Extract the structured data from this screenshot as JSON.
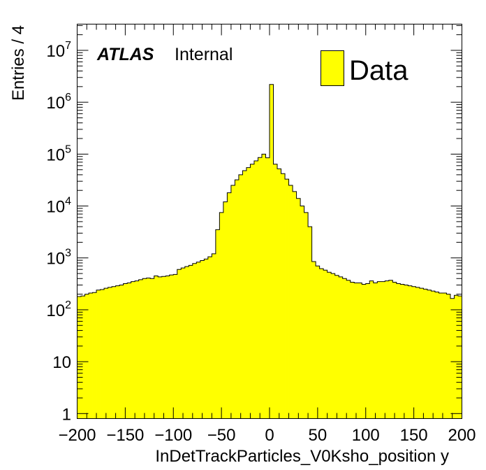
{
  "chart_data": {
    "type": "bar",
    "style": "histogram",
    "bin_width": 4,
    "xlim": [
      -200,
      200
    ],
    "ylim": [
      0.8,
      32000000.0
    ],
    "yscale": "log",
    "grid": false,
    "legend_position": "top-right",
    "xlabel": "InDetTrackParticles_V0Ksho_position y",
    "ylabel": "Entries / 4",
    "x_ticks": [
      "−200",
      "−150",
      "−100",
      "−50",
      "0",
      "50",
      "100",
      "150",
      "200"
    ],
    "x_tick_values": [
      -200,
      -150,
      -100,
      -50,
      0,
      50,
      100,
      150,
      200
    ],
    "y_ticks": [
      {
        "value": 1,
        "base": "1",
        "exp": ""
      },
      {
        "value": 10,
        "base": "10",
        "exp": ""
      },
      {
        "value": 100,
        "base": "10",
        "exp": "2"
      },
      {
        "value": 1000,
        "base": "10",
        "exp": "3"
      },
      {
        "value": 10000,
        "base": "10",
        "exp": "4"
      },
      {
        "value": 100000,
        "base": "10",
        "exp": "5"
      },
      {
        "value": 1000000,
        "base": "10",
        "exp": "6"
      },
      {
        "value": 10000000,
        "base": "10",
        "exp": "7"
      }
    ],
    "fill_color": "#ffff00",
    "line_color": "#000000",
    "annotation_bold": "ATLAS",
    "annotation_text": "Internal",
    "series": [
      {
        "name": "Data",
        "bin_low_edges": [
          -200,
          -196,
          -192,
          -188,
          -184,
          -180,
          -176,
          -172,
          -168,
          -164,
          -160,
          -156,
          -152,
          -148,
          -144,
          -140,
          -136,
          -132,
          -128,
          -124,
          -120,
          -116,
          -112,
          -108,
          -104,
          -100,
          -96,
          -92,
          -88,
          -84,
          -80,
          -76,
          -72,
          -68,
          -64,
          -60,
          -56,
          -52,
          -48,
          -44,
          -40,
          -36,
          -32,
          -28,
          -24,
          -20,
          -16,
          -12,
          -8,
          -4,
          0,
          4,
          8,
          12,
          16,
          20,
          24,
          28,
          32,
          36,
          40,
          44,
          48,
          52,
          56,
          60,
          64,
          68,
          72,
          76,
          80,
          84,
          88,
          92,
          96,
          100,
          104,
          108,
          112,
          116,
          120,
          124,
          128,
          132,
          136,
          140,
          144,
          148,
          152,
          156,
          160,
          164,
          168,
          172,
          176,
          180,
          184,
          188,
          192,
          196
        ],
        "values": [
          180,
          185,
          200,
          210,
          215,
          240,
          245,
          260,
          270,
          280,
          290,
          300,
          320,
          330,
          350,
          360,
          380,
          400,
          410,
          400,
          450,
          430,
          440,
          450,
          470,
          480,
          600,
          640,
          680,
          720,
          780,
          830,
          890,
          950,
          1050,
          1200,
          3500,
          7500,
          12000,
          18000,
          25000,
          32000,
          40000,
          48000,
          55000,
          64000,
          74000,
          86000,
          100000,
          85000,
          2200000,
          64000,
          52000,
          42000,
          33000,
          25000,
          19000,
          14000,
          10000,
          7500,
          4000,
          850,
          700,
          620,
          580,
          530,
          500,
          460,
          430,
          400,
          370,
          340,
          330,
          330,
          310,
          320,
          360,
          330,
          350,
          350,
          360,
          370,
          340,
          320,
          310,
          300,
          290,
          280,
          270,
          260,
          250,
          240,
          230,
          220,
          210,
          210,
          200,
          165,
          190,
          185
        ]
      }
    ]
  }
}
